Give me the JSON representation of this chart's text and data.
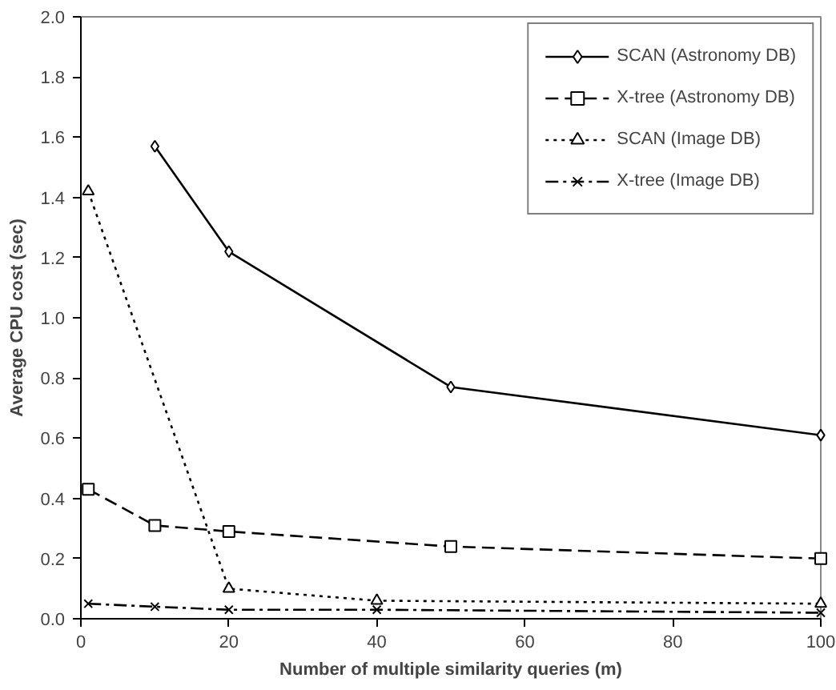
{
  "chart_data": {
    "type": "line",
    "xlabel": "Number of multiple similarity queries (m)",
    "ylabel": "Average CPU cost (sec)",
    "xlim": [
      0,
      100
    ],
    "ylim": [
      0,
      2.0
    ],
    "xticks": [
      0,
      20,
      40,
      60,
      80,
      100
    ],
    "yticks": [
      {
        "value": 0,
        "label": "0.0"
      },
      {
        "value": 0.2,
        "label": "0.2"
      },
      {
        "value": 0.4,
        "label": "0.4"
      },
      {
        "value": 0.6,
        "label": "0.6"
      },
      {
        "value": 0.8,
        "label": "0.8"
      },
      {
        "value": 1.0,
        "label": "1.0"
      },
      {
        "value": 1.2,
        "label": "1.2"
      },
      {
        "value": 1.4,
        "label": "1.4"
      },
      {
        "value": 1.6,
        "label": "1.6"
      },
      {
        "value": 1.8,
        "label": "1.8"
      },
      {
        "value": 2.0,
        "label": "2.0"
      }
    ],
    "grid": false,
    "legend": "top right",
    "series": [
      {
        "name": "SCAN (Astronomy DB)",
        "color": "#000000",
        "marker": "diamond",
        "line_style": "solid",
        "x": [
          10,
          20,
          50,
          100
        ],
        "values": [
          1.57,
          1.22,
          0.77,
          0.61
        ]
      },
      {
        "name": "X-tree (Astronomy DB)",
        "color": "#000000",
        "marker": "square",
        "line_style": "dashed",
        "x": [
          1,
          10,
          20,
          50,
          100
        ],
        "values": [
          0.43,
          0.31,
          0.29,
          0.24,
          0.2
        ]
      },
      {
        "name": "SCAN (Image DB)",
        "color": "#000000",
        "marker": "triangle",
        "line_style": "dotted",
        "x": [
          1,
          20,
          40,
          100
        ],
        "values": [
          1.42,
          0.1,
          0.06,
          0.05
        ]
      },
      {
        "name": "X-tree (Image DB)",
        "color": "#000000",
        "marker": "cross",
        "line_style": "dashdot",
        "x": [
          1,
          10,
          20,
          40,
          100
        ],
        "values": [
          0.05,
          0.04,
          0.03,
          0.03,
          0.02
        ]
      }
    ]
  }
}
